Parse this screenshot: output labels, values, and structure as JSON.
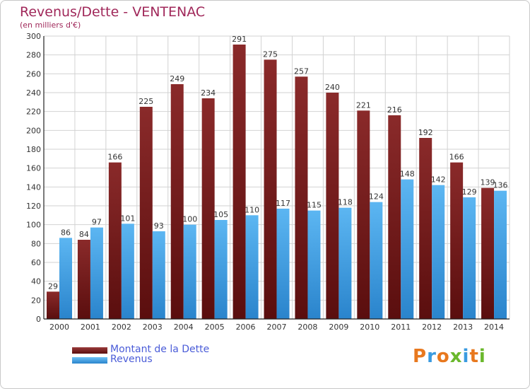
{
  "chart_data": {
    "type": "bar",
    "title": "Revenus/Dette - VENTENAC",
    "subtitle": "(en milliers d'€)",
    "categories": [
      "2000",
      "2001",
      "2002",
      "2003",
      "2004",
      "2005",
      "2006",
      "2007",
      "2008",
      "2009",
      "2010",
      "2011",
      "2012",
      "2013",
      "2014"
    ],
    "series": [
      {
        "name": "Montant de la Dette",
        "color": "#7a1e1e",
        "values": [
          29,
          84,
          166,
          225,
          249,
          234,
          291,
          275,
          257,
          240,
          221,
          216,
          192,
          166,
          139
        ]
      },
      {
        "name": "Revenus",
        "color": "#3f9fe4",
        "values": [
          86,
          97,
          101,
          93,
          100,
          105,
          110,
          117,
          115,
          118,
          124,
          148,
          142,
          129,
          136
        ]
      }
    ],
    "ylim": [
      0,
      300
    ],
    "yticks": [
      0,
      20,
      40,
      60,
      80,
      100,
      120,
      140,
      160,
      180,
      200,
      220,
      240,
      260,
      280,
      300
    ],
    "grid": true,
    "legend_position": "bottom-left"
  },
  "logo": {
    "text": "Proxiti"
  }
}
